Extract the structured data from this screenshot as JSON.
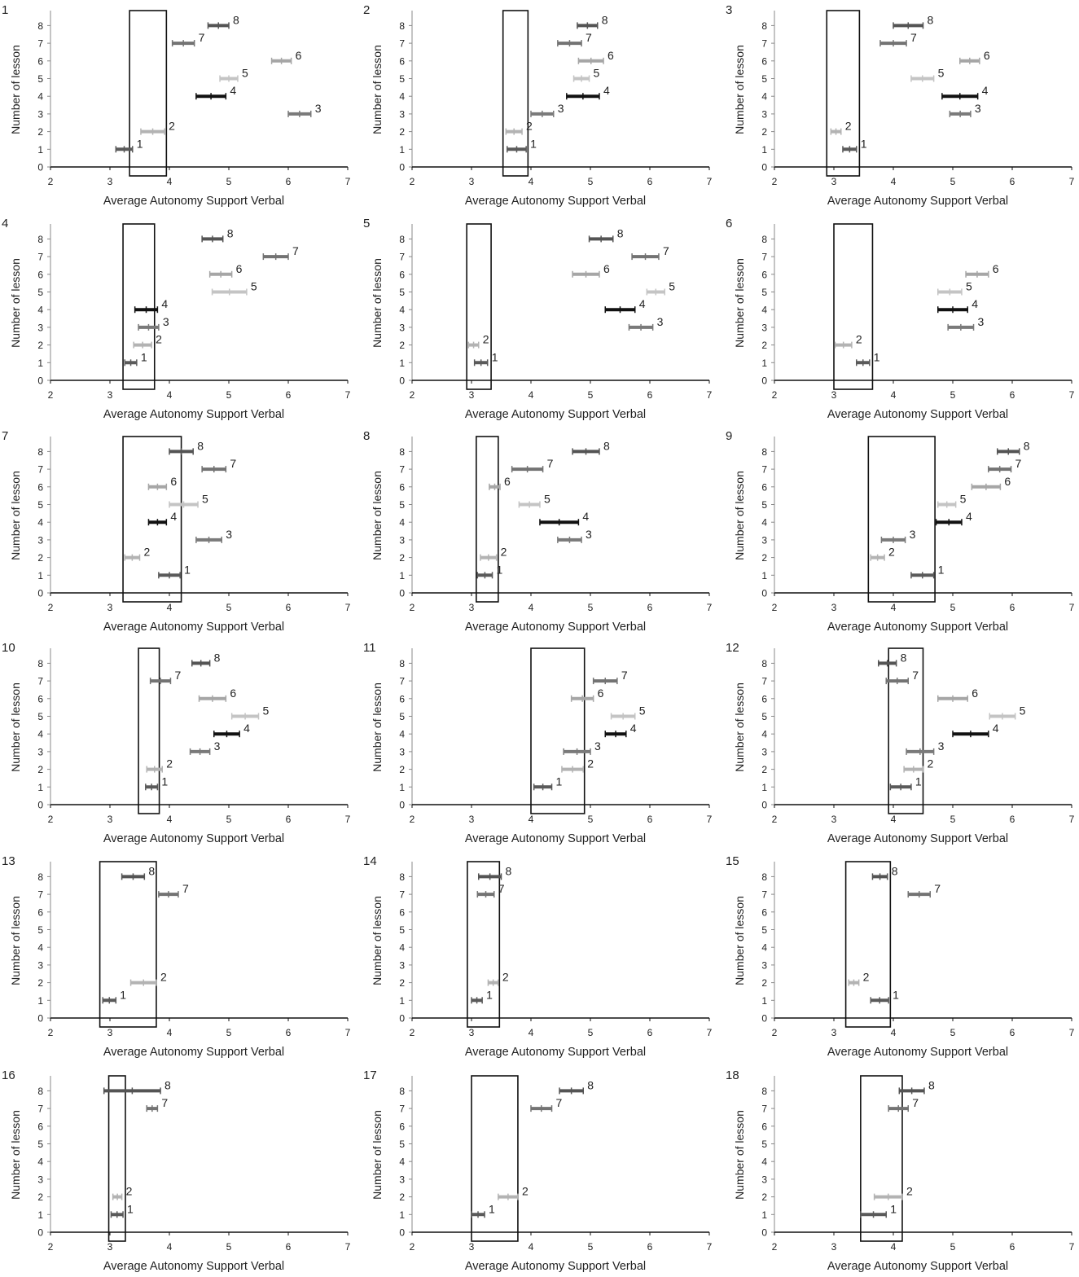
{
  "figure": {
    "xlabel": "Average Autonomy Support Verbal",
    "ylabel": "Number of lesson",
    "xlim": [
      2,
      7
    ],
    "ylim": [
      0,
      8
    ],
    "xticks": [
      "2",
      "3",
      "4",
      "5",
      "6",
      "7"
    ],
    "yticks": [
      "0",
      "1",
      "2",
      "3",
      "4",
      "5",
      "6",
      "7",
      "8"
    ],
    "lesson_colors": {
      "1": "#5a5a5a",
      "2": "#b3b3b3",
      "3": "#7a7a7a",
      "4": "#111111",
      "5": "#c4c4c4",
      "6": "#a6a6a6",
      "7": "#737373",
      "8": "#545454"
    },
    "box_color": "#111111"
  },
  "chart_data": [
    {
      "type": "range",
      "panel_label": "1",
      "box": [
        3.33,
        3.95
      ],
      "ranges": [
        {
          "lesson": 1,
          "lo": 3.1,
          "hi": 3.38
        },
        {
          "lesson": 2,
          "lo": 3.52,
          "hi": 3.92
        },
        {
          "lesson": 3,
          "lo": 6.0,
          "hi": 6.38
        },
        {
          "lesson": 4,
          "lo": 4.45,
          "hi": 4.95
        },
        {
          "lesson": 5,
          "lo": 4.85,
          "hi": 5.15
        },
        {
          "lesson": 6,
          "lo": 5.72,
          "hi": 6.05
        },
        {
          "lesson": 7,
          "lo": 4.05,
          "hi": 4.42
        },
        {
          "lesson": 8,
          "lo": 4.65,
          "hi": 5.0
        }
      ]
    },
    {
      "type": "range",
      "panel_label": "2",
      "box": [
        3.53,
        3.95
      ],
      "ranges": [
        {
          "lesson": 1,
          "lo": 3.6,
          "hi": 3.92
        },
        {
          "lesson": 2,
          "lo": 3.58,
          "hi": 3.85
        },
        {
          "lesson": 3,
          "lo": 4.0,
          "hi": 4.38
        },
        {
          "lesson": 4,
          "lo": 4.6,
          "hi": 5.15
        },
        {
          "lesson": 5,
          "lo": 4.72,
          "hi": 4.98
        },
        {
          "lesson": 6,
          "lo": 4.8,
          "hi": 5.22
        },
        {
          "lesson": 7,
          "lo": 4.45,
          "hi": 4.85
        },
        {
          "lesson": 8,
          "lo": 4.78,
          "hi": 5.12
        }
      ]
    },
    {
      "type": "range",
      "panel_label": "3",
      "box": [
        2.88,
        3.43
      ],
      "ranges": [
        {
          "lesson": 1,
          "lo": 3.15,
          "hi": 3.38
        },
        {
          "lesson": 2,
          "lo": 2.95,
          "hi": 3.12
        },
        {
          "lesson": 3,
          "lo": 4.95,
          "hi": 5.3
        },
        {
          "lesson": 4,
          "lo": 4.82,
          "hi": 5.42
        },
        {
          "lesson": 5,
          "lo": 4.3,
          "hi": 4.68
        },
        {
          "lesson": 6,
          "lo": 5.12,
          "hi": 5.45
        },
        {
          "lesson": 7,
          "lo": 3.78,
          "hi": 4.22
        },
        {
          "lesson": 8,
          "lo": 4.0,
          "hi": 4.5
        }
      ]
    },
    {
      "type": "range",
      "panel_label": "4",
      "box": [
        3.22,
        3.75
      ],
      "ranges": [
        {
          "lesson": 1,
          "lo": 3.25,
          "hi": 3.45
        },
        {
          "lesson": 2,
          "lo": 3.4,
          "hi": 3.7
        },
        {
          "lesson": 3,
          "lo": 3.48,
          "hi": 3.82
        },
        {
          "lesson": 4,
          "lo": 3.42,
          "hi": 3.8
        },
        {
          "lesson": 5,
          "lo": 4.72,
          "hi": 5.3
        },
        {
          "lesson": 6,
          "lo": 4.68,
          "hi": 5.05
        },
        {
          "lesson": 7,
          "lo": 5.58,
          "hi": 6.0
        },
        {
          "lesson": 8,
          "lo": 4.55,
          "hi": 4.9
        }
      ]
    },
    {
      "type": "range",
      "panel_label": "5",
      "box": [
        2.92,
        3.33
      ],
      "ranges": [
        {
          "lesson": 1,
          "lo": 3.05,
          "hi": 3.27
        },
        {
          "lesson": 2,
          "lo": 2.95,
          "hi": 3.12
        },
        {
          "lesson": 3,
          "lo": 5.65,
          "hi": 6.05
        },
        {
          "lesson": 4,
          "lo": 5.25,
          "hi": 5.75
        },
        {
          "lesson": 5,
          "lo": 5.95,
          "hi": 6.25
        },
        {
          "lesson": 6,
          "lo": 4.7,
          "hi": 5.15
        },
        {
          "lesson": 7,
          "lo": 5.7,
          "hi": 6.15
        },
        {
          "lesson": 8,
          "lo": 4.98,
          "hi": 5.38
        }
      ]
    },
    {
      "type": "range",
      "panel_label": "6",
      "box": [
        3.0,
        3.65
      ],
      "ranges": [
        {
          "lesson": 1,
          "lo": 3.38,
          "hi": 3.6
        },
        {
          "lesson": 2,
          "lo": 3.02,
          "hi": 3.3
        },
        {
          "lesson": 3,
          "lo": 4.92,
          "hi": 5.35
        },
        {
          "lesson": 4,
          "lo": 4.75,
          "hi": 5.25
        },
        {
          "lesson": 5,
          "lo": 4.75,
          "hi": 5.15
        },
        {
          "lesson": 6,
          "lo": 5.22,
          "hi": 5.6
        },
        {
          "lesson": 7,
          "lo": null,
          "hi": null
        },
        {
          "lesson": 8,
          "lo": null,
          "hi": null
        }
      ]
    },
    {
      "type": "range",
      "panel_label": "7",
      "box": [
        3.22,
        4.2
      ],
      "ranges": [
        {
          "lesson": 1,
          "lo": 3.82,
          "hi": 4.18
        },
        {
          "lesson": 2,
          "lo": 3.25,
          "hi": 3.5
        },
        {
          "lesson": 3,
          "lo": 4.45,
          "hi": 4.88
        },
        {
          "lesson": 4,
          "lo": 3.65,
          "hi": 3.95
        },
        {
          "lesson": 5,
          "lo": 4.0,
          "hi": 4.48
        },
        {
          "lesson": 6,
          "lo": 3.65,
          "hi": 3.95
        },
        {
          "lesson": 7,
          "lo": 4.55,
          "hi": 4.95
        },
        {
          "lesson": 8,
          "lo": 4.0,
          "hi": 4.4
        }
      ]
    },
    {
      "type": "range",
      "panel_label": "8",
      "box": [
        3.08,
        3.45
      ],
      "ranges": [
        {
          "lesson": 1,
          "lo": 3.1,
          "hi": 3.35
        },
        {
          "lesson": 2,
          "lo": 3.15,
          "hi": 3.42
        },
        {
          "lesson": 3,
          "lo": 4.45,
          "hi": 4.85
        },
        {
          "lesson": 4,
          "lo": 4.15,
          "hi": 4.8
        },
        {
          "lesson": 5,
          "lo": 3.8,
          "hi": 4.15
        },
        {
          "lesson": 6,
          "lo": 3.3,
          "hi": 3.48
        },
        {
          "lesson": 7,
          "lo": 3.68,
          "hi": 4.2
        },
        {
          "lesson": 8,
          "lo": 4.7,
          "hi": 5.15
        }
      ]
    },
    {
      "type": "range",
      "panel_label": "9",
      "box": [
        3.58,
        4.7
      ],
      "ranges": [
        {
          "lesson": 1,
          "lo": 4.3,
          "hi": 4.68
        },
        {
          "lesson": 2,
          "lo": 3.62,
          "hi": 3.85
        },
        {
          "lesson": 3,
          "lo": 3.8,
          "hi": 4.2
        },
        {
          "lesson": 4,
          "lo": 4.72,
          "hi": 5.15
        },
        {
          "lesson": 5,
          "lo": 4.75,
          "hi": 5.05
        },
        {
          "lesson": 6,
          "lo": 5.32,
          "hi": 5.8
        },
        {
          "lesson": 7,
          "lo": 5.6,
          "hi": 5.98
        },
        {
          "lesson": 8,
          "lo": 5.75,
          "hi": 6.12
        }
      ]
    },
    {
      "type": "range",
      "panel_label": "10",
      "box": [
        3.48,
        3.83
      ],
      "ranges": [
        {
          "lesson": 1,
          "lo": 3.6,
          "hi": 3.8
        },
        {
          "lesson": 2,
          "lo": 3.62,
          "hi": 3.88
        },
        {
          "lesson": 3,
          "lo": 4.35,
          "hi": 4.68
        },
        {
          "lesson": 4,
          "lo": 4.75,
          "hi": 5.18
        },
        {
          "lesson": 5,
          "lo": 5.05,
          "hi": 5.5
        },
        {
          "lesson": 6,
          "lo": 4.5,
          "hi": 4.95
        },
        {
          "lesson": 7,
          "lo": 3.68,
          "hi": 4.02
        },
        {
          "lesson": 8,
          "lo": 4.38,
          "hi": 4.68
        }
      ]
    },
    {
      "type": "range",
      "panel_label": "11",
      "box": [
        4.0,
        4.9
      ],
      "ranges": [
        {
          "lesson": 1,
          "lo": 4.05,
          "hi": 4.35
        },
        {
          "lesson": 2,
          "lo": 4.52,
          "hi": 4.88
        },
        {
          "lesson": 3,
          "lo": 4.55,
          "hi": 5.0
        },
        {
          "lesson": 4,
          "lo": 5.25,
          "hi": 5.6
        },
        {
          "lesson": 5,
          "lo": 5.35,
          "hi": 5.75
        },
        {
          "lesson": 6,
          "lo": 4.68,
          "hi": 5.05
        },
        {
          "lesson": 7,
          "lo": 5.05,
          "hi": 5.45
        },
        {
          "lesson": 8,
          "lo": null,
          "hi": null
        }
      ]
    },
    {
      "type": "range",
      "panel_label": "12",
      "box": [
        3.92,
        4.5
      ],
      "ranges": [
        {
          "lesson": 1,
          "lo": 3.95,
          "hi": 4.3
        },
        {
          "lesson": 2,
          "lo": 4.18,
          "hi": 4.5
        },
        {
          "lesson": 3,
          "lo": 4.22,
          "hi": 4.68
        },
        {
          "lesson": 4,
          "lo": 5.0,
          "hi": 5.6
        },
        {
          "lesson": 5,
          "lo": 5.62,
          "hi": 6.05
        },
        {
          "lesson": 6,
          "lo": 4.75,
          "hi": 5.25
        },
        {
          "lesson": 7,
          "lo": 3.88,
          "hi": 4.25
        },
        {
          "lesson": 8,
          "lo": 3.75,
          "hi": 4.05
        }
      ]
    },
    {
      "type": "range",
      "panel_label": "13",
      "box": [
        2.83,
        3.78
      ],
      "ranges": [
        {
          "lesson": 1,
          "lo": 2.88,
          "hi": 3.1
        },
        {
          "lesson": 2,
          "lo": 3.35,
          "hi": 3.78
        },
        {
          "lesson": 3,
          "lo": null,
          "hi": null
        },
        {
          "lesson": 4,
          "lo": null,
          "hi": null
        },
        {
          "lesson": 5,
          "lo": null,
          "hi": null
        },
        {
          "lesson": 6,
          "lo": null,
          "hi": null
        },
        {
          "lesson": 7,
          "lo": 3.82,
          "hi": 4.15
        },
        {
          "lesson": 8,
          "lo": 3.2,
          "hi": 3.58
        }
      ]
    },
    {
      "type": "range",
      "panel_label": "14",
      "box": [
        2.93,
        3.47
      ],
      "ranges": [
        {
          "lesson": 1,
          "lo": 3.0,
          "hi": 3.18
        },
        {
          "lesson": 2,
          "lo": 3.28,
          "hi": 3.45
        },
        {
          "lesson": 3,
          "lo": null,
          "hi": null
        },
        {
          "lesson": 4,
          "lo": null,
          "hi": null
        },
        {
          "lesson": 5,
          "lo": null,
          "hi": null
        },
        {
          "lesson": 6,
          "lo": null,
          "hi": null
        },
        {
          "lesson": 7,
          "lo": 3.1,
          "hi": 3.38
        },
        {
          "lesson": 8,
          "lo": 3.12,
          "hi": 3.5
        }
      ]
    },
    {
      "type": "range",
      "panel_label": "15",
      "box": [
        3.2,
        3.95
      ],
      "ranges": [
        {
          "lesson": 1,
          "lo": 3.62,
          "hi": 3.92
        },
        {
          "lesson": 2,
          "lo": 3.25,
          "hi": 3.42
        },
        {
          "lesson": 3,
          "lo": null,
          "hi": null
        },
        {
          "lesson": 4,
          "lo": null,
          "hi": null
        },
        {
          "lesson": 5,
          "lo": null,
          "hi": null
        },
        {
          "lesson": 6,
          "lo": null,
          "hi": null
        },
        {
          "lesson": 7,
          "lo": 4.25,
          "hi": 4.62
        },
        {
          "lesson": 8,
          "lo": 3.65,
          "hi": 3.9
        }
      ]
    },
    {
      "type": "range",
      "panel_label": "16",
      "box": [
        2.98,
        3.26
      ],
      "ranges": [
        {
          "lesson": 1,
          "lo": 3.02,
          "hi": 3.22
        },
        {
          "lesson": 2,
          "lo": 3.05,
          "hi": 3.2
        },
        {
          "lesson": 3,
          "lo": null,
          "hi": null
        },
        {
          "lesson": 4,
          "lo": null,
          "hi": null
        },
        {
          "lesson": 5,
          "lo": null,
          "hi": null
        },
        {
          "lesson": 6,
          "lo": null,
          "hi": null
        },
        {
          "lesson": 7,
          "lo": 3.62,
          "hi": 3.8
        },
        {
          "lesson": 8,
          "lo": 2.9,
          "hi": 3.85
        }
      ]
    },
    {
      "type": "range",
      "panel_label": "17",
      "box": [
        3.0,
        3.78
      ],
      "ranges": [
        {
          "lesson": 1,
          "lo": 3.0,
          "hi": 3.22
        },
        {
          "lesson": 2,
          "lo": 3.45,
          "hi": 3.78
        },
        {
          "lesson": 3,
          "lo": null,
          "hi": null
        },
        {
          "lesson": 4,
          "lo": null,
          "hi": null
        },
        {
          "lesson": 5,
          "lo": null,
          "hi": null
        },
        {
          "lesson": 6,
          "lo": null,
          "hi": null
        },
        {
          "lesson": 7,
          "lo": 4.0,
          "hi": 4.35
        },
        {
          "lesson": 8,
          "lo": 4.48,
          "hi": 4.88
        }
      ]
    },
    {
      "type": "range",
      "panel_label": "18",
      "box": [
        3.45,
        4.15
      ],
      "ranges": [
        {
          "lesson": 1,
          "lo": 3.45,
          "hi": 3.88
        },
        {
          "lesson": 2,
          "lo": 3.68,
          "hi": 4.15
        },
        {
          "lesson": 3,
          "lo": null,
          "hi": null
        },
        {
          "lesson": 4,
          "lo": null,
          "hi": null
        },
        {
          "lesson": 5,
          "lo": null,
          "hi": null
        },
        {
          "lesson": 6,
          "lo": null,
          "hi": null
        },
        {
          "lesson": 7,
          "lo": 3.92,
          "hi": 4.25
        },
        {
          "lesson": 8,
          "lo": 4.1,
          "hi": 4.52
        }
      ]
    }
  ]
}
